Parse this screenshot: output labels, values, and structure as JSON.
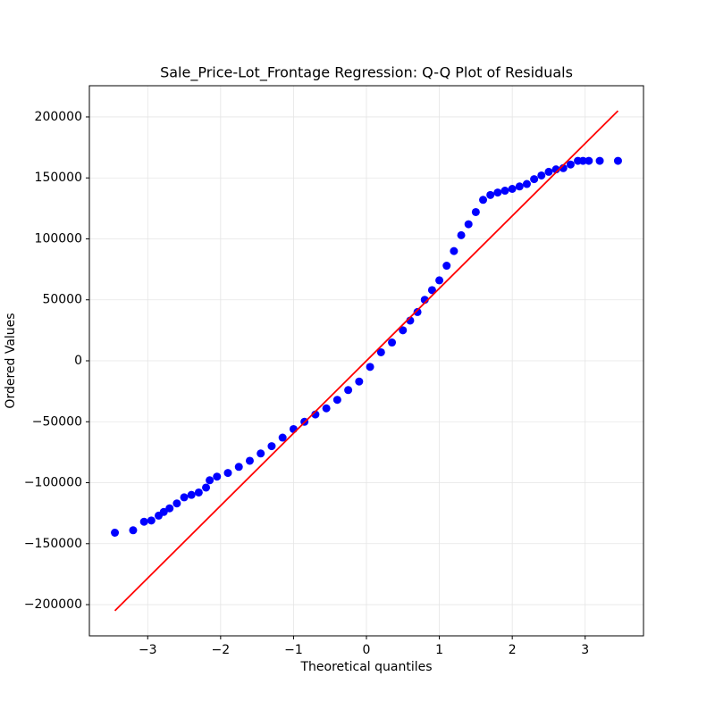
{
  "chart_data": {
    "type": "scatter",
    "title": "Sale_Price-Lot_Frontage Regression: Q-Q Plot of Residuals",
    "x_label": "Theoretical quantiles",
    "y_label": "Ordered Values",
    "xlim": [
      -3.8,
      3.8
    ],
    "ylim": [
      -225600,
      225600
    ],
    "xticks": [
      {
        "value": -3,
        "label": "−3"
      },
      {
        "value": -2,
        "label": "−2"
      },
      {
        "value": -1,
        "label": "−1"
      },
      0,
      1,
      2,
      3
    ],
    "yticks": [
      {
        "value": -200000,
        "label": "−200000"
      },
      {
        "value": -150000,
        "label": "−150000"
      },
      {
        "value": -100000,
        "label": "−100000"
      },
      {
        "value": -50000,
        "label": "−50000"
      },
      0,
      50000,
      100000,
      150000,
      200000
    ],
    "grid": true,
    "series": [
      {
        "type": "scatter",
        "color": "#0000ff",
        "x": [
          -3.45,
          -3.2,
          -3.05,
          -2.95,
          -2.85,
          -2.78,
          -2.7,
          -2.6,
          -2.5,
          -2.4,
          -2.3,
          -2.2,
          -2.15,
          -2.05,
          -1.9,
          -1.75,
          -1.6,
          -1.45,
          -1.3,
          -1.15,
          -1.0,
          -0.85,
          -0.7,
          -0.55,
          -0.4,
          -0.25,
          -0.1,
          0.05,
          0.2,
          0.35,
          0.5,
          0.6,
          0.7,
          0.8,
          0.9,
          1.0,
          1.1,
          1.2,
          1.3,
          1.4,
          1.5,
          1.6,
          1.7,
          1.8,
          1.9,
          2.0,
          2.1,
          2.2,
          2.3,
          2.4,
          2.5,
          2.6,
          2.7,
          2.8,
          2.9,
          2.97,
          3.05,
          3.2,
          3.45
        ],
        "values": [
          -141000,
          -139000,
          -132000,
          -131000,
          -127000,
          -124000,
          -121000,
          -117000,
          -112000,
          -110000,
          -108000,
          -104000,
          -98000,
          -95000,
          -92000,
          -87000,
          -82000,
          -76000,
          -70000,
          -63000,
          -56000,
          -50000,
          -44000,
          -39000,
          -32000,
          -24000,
          -17000,
          -5000,
          7000,
          15000,
          25000,
          33000,
          40000,
          50000,
          58000,
          66000,
          78000,
          90000,
          103000,
          112000,
          122000,
          132000,
          136000,
          138000,
          139500,
          141000,
          143000,
          145000,
          149000,
          152000,
          155000,
          157000,
          158000,
          161000,
          164000,
          164000,
          164000,
          164000,
          164000
        ]
      },
      {
        "type": "line",
        "color": "#ff0000",
        "x": [
          -3.45,
          3.45
        ],
        "values": [
          -205000,
          205000
        ]
      }
    ]
  }
}
